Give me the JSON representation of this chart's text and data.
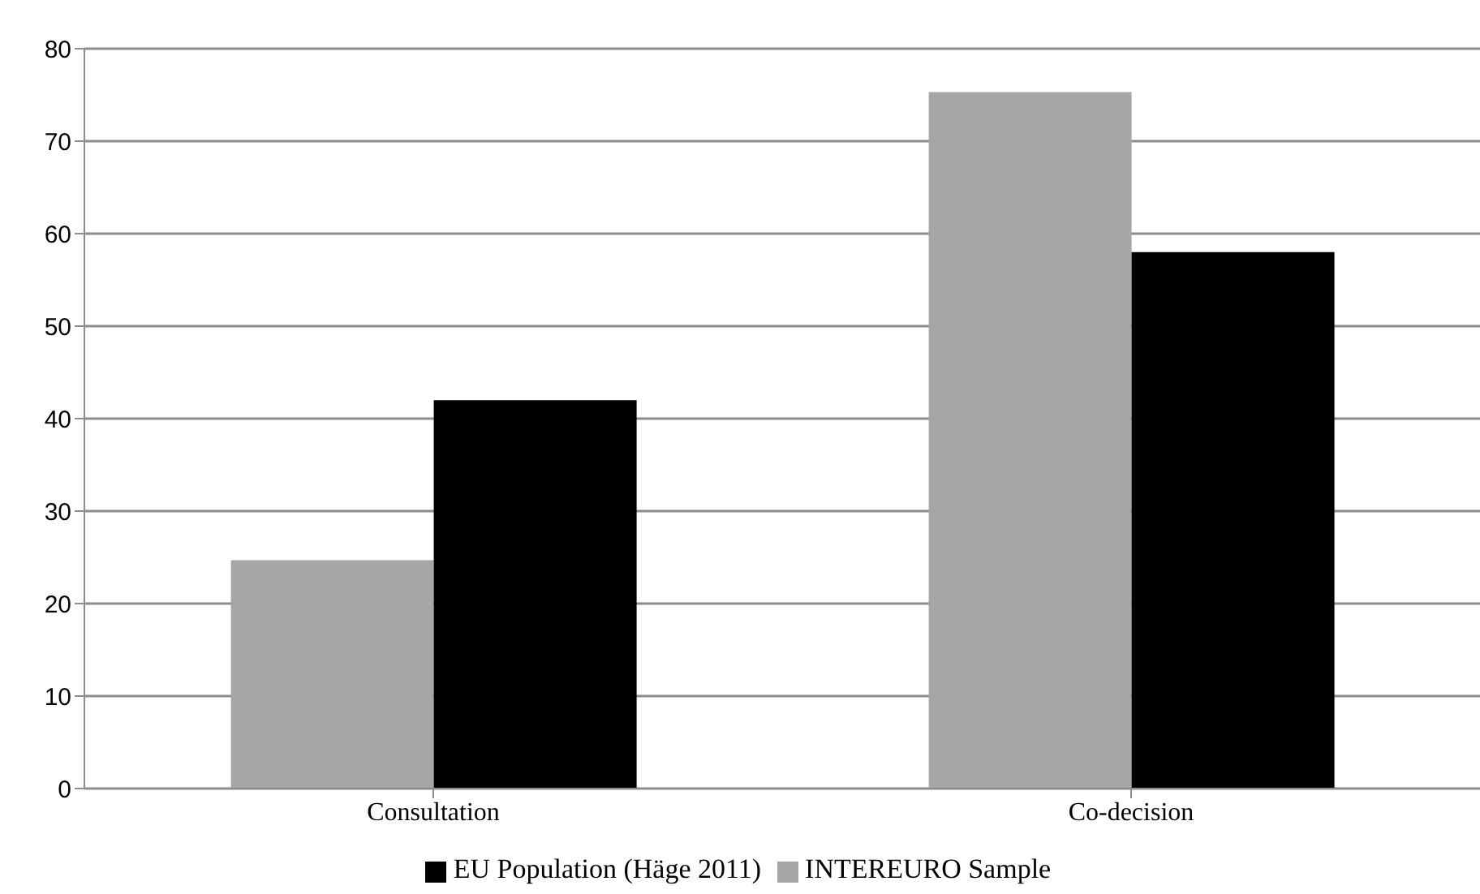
{
  "chart_data": {
    "type": "bar",
    "categories": [
      "Consultation",
      "Co-decision"
    ],
    "series": [
      {
        "name": "INTEREURO Sample",
        "color": "#a6a6a6",
        "values": [
          24.7,
          75.3
        ]
      },
      {
        "name": "EU Population (Häge 2011)",
        "color": "#000000",
        "values": [
          42,
          58
        ]
      }
    ],
    "ylim": [
      0,
      80
    ],
    "yticks": [
      0,
      10,
      20,
      30,
      40,
      50,
      60,
      70,
      80
    ],
    "grid": "y",
    "legend": "bottom"
  }
}
